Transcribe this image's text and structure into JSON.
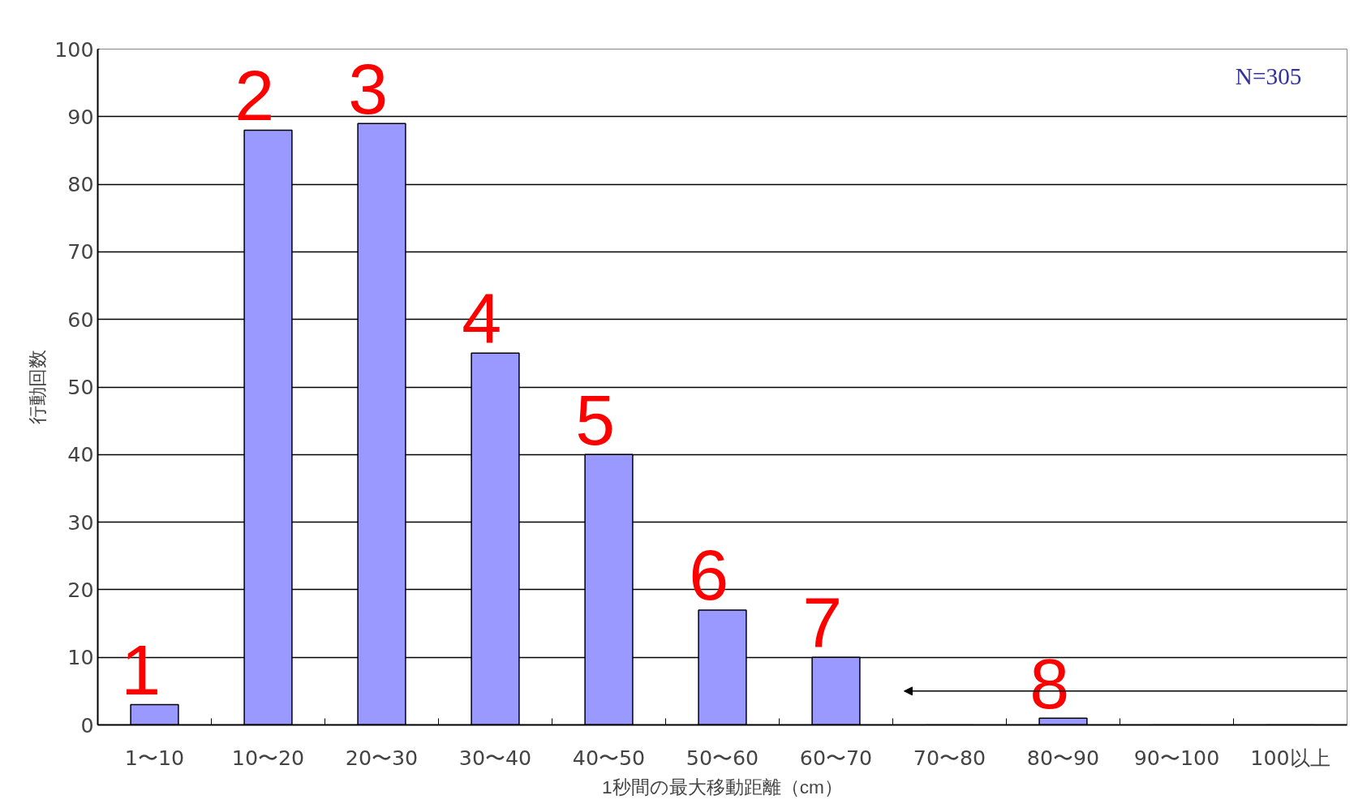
{
  "chart_data": {
    "type": "bar",
    "xlabel": "1秒間の最大移動距離（cm）",
    "ylabel": "行動回数",
    "categories": [
      "1〜10",
      "10〜20",
      "20〜30",
      "30〜40",
      "40〜50",
      "50〜60",
      "60〜70",
      "70〜80",
      "80〜90",
      "90〜100",
      "100以上"
    ],
    "values": [
      3,
      88,
      89,
      55,
      40,
      17,
      10,
      0,
      1,
      0,
      0
    ],
    "color": "#9999ff",
    "ylim": [
      0,
      100
    ],
    "yticks": [
      0,
      10,
      20,
      30,
      40,
      50,
      60,
      70,
      80,
      90,
      100
    ],
    "grid": "y",
    "annotations": [
      "1",
      "2",
      "3",
      "4",
      "5",
      "6",
      "7",
      "8",
      "N=305"
    ]
  }
}
